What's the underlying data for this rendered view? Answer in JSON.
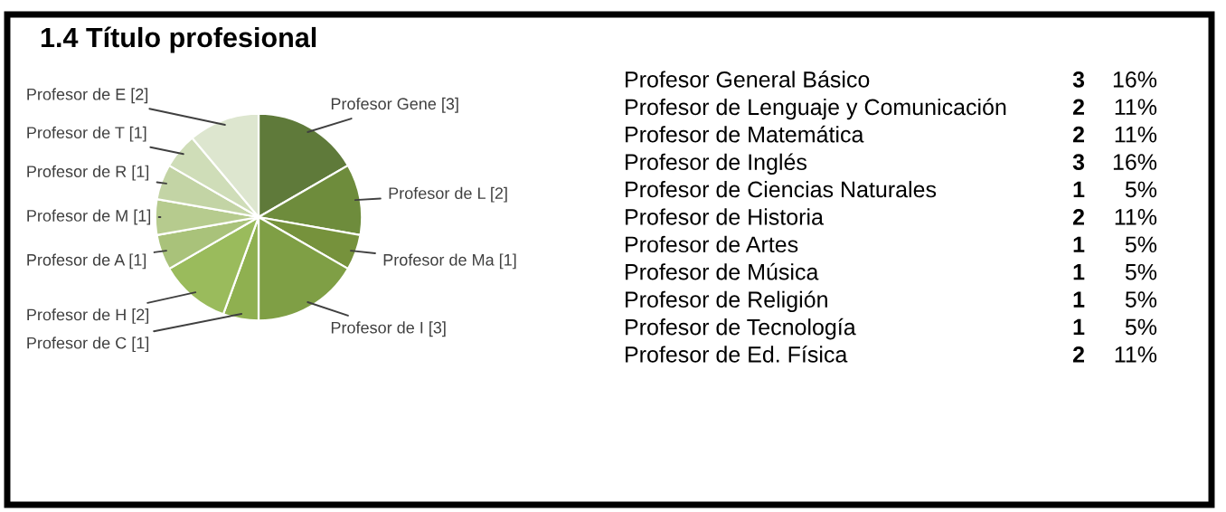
{
  "chart_data": [
    {
      "type": "pie",
      "title": "1.4 Título profesional",
      "categories": [
        null,
        null,
        null,
        null,
        null,
        null,
        null,
        null,
        null,
        null,
        null
      ],
      "values": [
        3,
        2,
        1,
        3,
        1,
        2,
        1,
        1,
        1,
        1,
        2
      ],
      "value_labels": [
        "Profesor Gene [3]",
        "Profesor de L [2]",
        "Profesor de Ma [1]",
        "Profesor de I [3]",
        "Profesor de C [1]",
        "Profesor de H [2]",
        "Profesor de A [1]",
        "Profesor de M [1]",
        "Profesor de R [1]",
        "Profesor de T [1]",
        "Profesor de E [2]"
      ],
      "colors": [
        "#5f7a3a",
        "#6e8c3c",
        "#76923c",
        "#7f9f45",
        "#8fb050",
        "#9abb5c",
        "#a9c27a",
        "#b6cb8e",
        "#c3d4a5",
        "#cfddb8",
        "#dde6cf"
      ]
    },
    {
      "type": "other",
      "categories": [
        "Profesor General Básico",
        "Profesor de Lenguaje y Comunicación",
        "Profesor de Matemática",
        "Profesor de Inglés",
        "Profesor de Ciencias Naturales",
        "Profesor de Historia",
        "Profesor de Artes",
        "Profesor de Música",
        "Profesor de Religión",
        "Profesor de Tecnología",
        "Profesor de Ed. Física"
      ],
      "series": [
        {
          "values": [
            3,
            2,
            2,
            3,
            1,
            2,
            1,
            1,
            1,
            1,
            2
          ]
        },
        {
          "values": [
            16,
            11,
            11,
            16,
            5,
            11,
            5,
            5,
            5,
            5,
            11
          ],
          "value_labels": [
            "16%",
            "11%",
            "11%",
            "16%",
            "5%",
            "11%",
            "5%",
            "5%",
            "5%",
            "5%",
            "11%"
          ]
        }
      ],
      "data_labels": true
    }
  ]
}
